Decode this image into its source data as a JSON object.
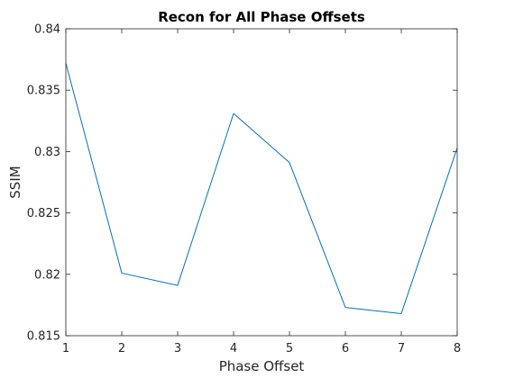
{
  "chart_data": {
    "type": "line",
    "title": "Recon for All Phase Offsets",
    "xlabel": "Phase Offset",
    "ylabel": "SSIM",
    "xlim": [
      1,
      8
    ],
    "ylim": [
      0.815,
      0.84
    ],
    "x_ticks": [
      1,
      2,
      3,
      4,
      5,
      6,
      7,
      8
    ],
    "x_tick_labels": [
      "1",
      "2",
      "3",
      "4",
      "5",
      "6",
      "7",
      "8"
    ],
    "y_ticks": [
      0.815,
      0.82,
      0.825,
      0.83,
      0.835,
      0.84
    ],
    "y_tick_labels": [
      "0.815",
      "0.82",
      "0.825",
      "0.83",
      "0.835",
      "0.84"
    ],
    "grid": false,
    "series": [
      {
        "x": [
          1,
          2,
          3,
          4,
          5,
          6,
          7,
          8
        ],
        "values": [
          0.8372,
          0.8201,
          0.8191,
          0.8331,
          0.8291,
          0.8173,
          0.8168,
          0.8303
        ],
        "color": "#0072BD"
      }
    ]
  }
}
